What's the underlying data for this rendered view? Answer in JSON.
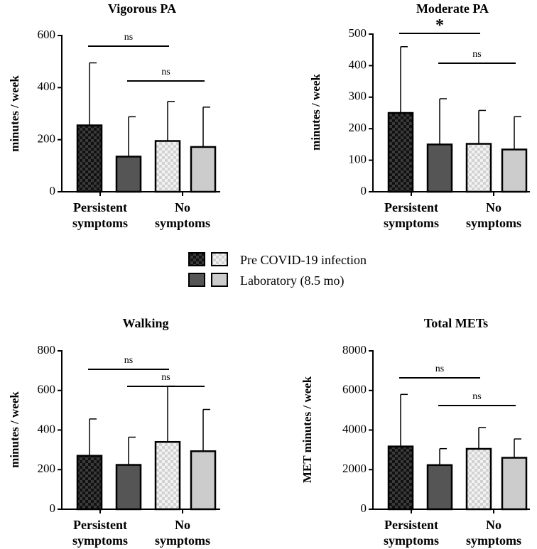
{
  "colors": {
    "pre_persistent": "#2b2b2b",
    "lab_persistent": "#555555",
    "pre_none": "#e0e0e0",
    "lab_none": "#cccccc",
    "stroke": "#000000"
  },
  "legend": {
    "pre_label": "Pre COVID-19 infection",
    "lab_label": "Laboratory (8.5 mo)"
  },
  "chart_data": [
    {
      "type": "bar",
      "title": "Vigorous PA",
      "ylabel": "minutes / week",
      "ylim": [
        0,
        600
      ],
      "yticks": [
        0,
        200,
        400,
        600
      ],
      "groups": [
        "Persistent\nsymptoms",
        "No\nsymptoms"
      ],
      "series": [
        {
          "name": "Pre COVID-19 infection",
          "group": "Persistent symptoms",
          "value": 255,
          "sd_upper": 495
        },
        {
          "name": "Laboratory (8.5 mo)",
          "group": "Persistent symptoms",
          "value": 135,
          "sd_upper": 288
        },
        {
          "name": "Pre COVID-19 infection",
          "group": "No symptoms",
          "value": 195,
          "sd_upper": 347
        },
        {
          "name": "Laboratory (8.5 mo)",
          "group": "No symptoms",
          "value": 172,
          "sd_upper": 325
        }
      ],
      "significance": [
        {
          "label": "ns",
          "from_bar": 0,
          "to_bar": 2
        },
        {
          "label": "ns",
          "from_bar": 1,
          "to_bar": 3
        }
      ]
    },
    {
      "type": "bar",
      "title": "Moderate PA",
      "ylabel": "minutes / week",
      "ylim": [
        0,
        500
      ],
      "yticks": [
        0,
        100,
        200,
        300,
        400,
        500
      ],
      "groups": [
        "Persistent\nsymptoms",
        "No\nsymptoms"
      ],
      "series": [
        {
          "name": "Pre COVID-19 infection",
          "group": "Persistent symptoms",
          "value": 250,
          "sd_upper": 460
        },
        {
          "name": "Laboratory (8.5 mo)",
          "group": "Persistent symptoms",
          "value": 150,
          "sd_upper": 295
        },
        {
          "name": "Pre COVID-19 infection",
          "group": "No symptoms",
          "value": 152,
          "sd_upper": 258
        },
        {
          "name": "Laboratory (8.5 mo)",
          "group": "No symptoms",
          "value": 134,
          "sd_upper": 238
        }
      ],
      "significance": [
        {
          "label": "*",
          "from_bar": 0,
          "to_bar": 2
        },
        {
          "label": "ns",
          "from_bar": 1,
          "to_bar": 3
        }
      ]
    },
    {
      "type": "bar",
      "title": "Walking",
      "ylabel": "minutes / week",
      "ylim": [
        0,
        800
      ],
      "yticks": [
        0,
        200,
        400,
        600,
        800
      ],
      "groups": [
        "Persistent\nsymptoms",
        "No\nsymptoms"
      ],
      "series": [
        {
          "name": "Pre COVID-19 infection",
          "group": "Persistent symptoms",
          "value": 270,
          "sd_upper": 456
        },
        {
          "name": "Laboratory (8.5 mo)",
          "group": "Persistent symptoms",
          "value": 224,
          "sd_upper": 364
        },
        {
          "name": "Pre COVID-19 infection",
          "group": "No symptoms",
          "value": 340,
          "sd_upper": 622
        },
        {
          "name": "Laboratory (8.5 mo)",
          "group": "No symptoms",
          "value": 293,
          "sd_upper": 504
        }
      ],
      "significance": [
        {
          "label": "ns",
          "from_bar": 0,
          "to_bar": 2
        },
        {
          "label": "ns",
          "from_bar": 1,
          "to_bar": 3
        }
      ]
    },
    {
      "type": "bar",
      "title": "Total METs",
      "ylabel": "MET minutes / week",
      "ylim": [
        0,
        8000
      ],
      "yticks": [
        0,
        2000,
        4000,
        6000,
        8000
      ],
      "groups": [
        "Persistent\nsymptoms",
        "No\nsymptoms"
      ],
      "series": [
        {
          "name": "Pre COVID-19 infection",
          "group": "Persistent symptoms",
          "value": 3170,
          "sd_upper": 5800
        },
        {
          "name": "Laboratory (8.5 mo)",
          "group": "Persistent symptoms",
          "value": 2230,
          "sd_upper": 3060
        },
        {
          "name": "Pre COVID-19 infection",
          "group": "No symptoms",
          "value": 3050,
          "sd_upper": 4130
        },
        {
          "name": "Laboratory (8.5 mo)",
          "group": "No symptoms",
          "value": 2600,
          "sd_upper": 3550
        }
      ],
      "significance": [
        {
          "label": "ns",
          "from_bar": 0,
          "to_bar": 2
        },
        {
          "label": "ns",
          "from_bar": 1,
          "to_bar": 3
        }
      ]
    }
  ]
}
